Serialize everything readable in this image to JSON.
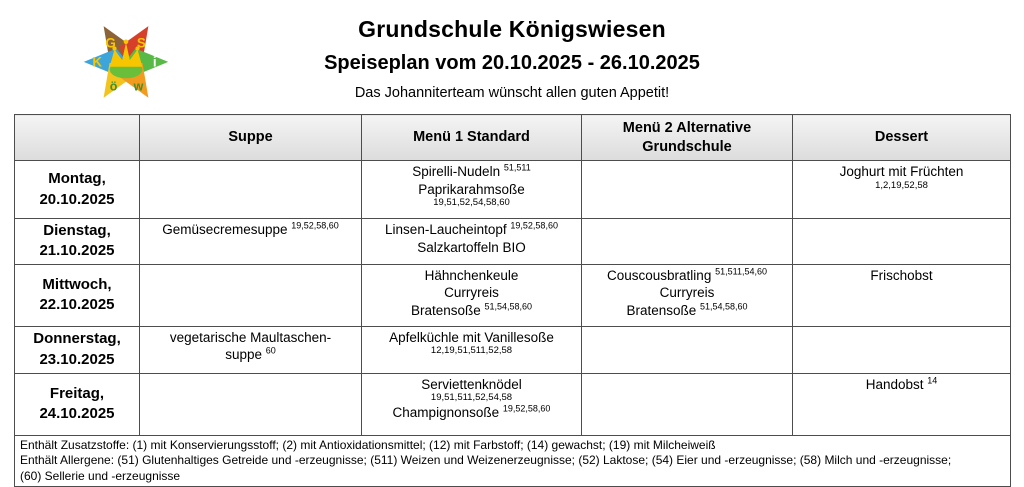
{
  "header": {
    "title": "Grundschule Königswiesen",
    "subtitle": "Speiseplan vom 20.10.2025 - 26.10.2025",
    "tagline": "Das Johanniterteam wünscht allen guten Appetit!"
  },
  "logo": {
    "name": "school-star-logo",
    "letters": [
      "G",
      "S",
      "K",
      "i",
      "ö",
      "w"
    ],
    "colors": {
      "g_petal": "#8c6239",
      "s_petal": "#d6402a",
      "k_petal": "#3da5d9",
      "i_petal": "#58b947",
      "oe_petal": "#f2c41d",
      "w_petal": "#f29c1f",
      "crown": "#f7c600",
      "grass": "#6abf3a",
      "letter_yellow": "#f7c600",
      "letter_white": "#ffffff",
      "letter_green": "#3f8f2e"
    }
  },
  "table": {
    "columns": [
      "",
      "Suppe",
      "Menü 1 Standard",
      "Menü 2 Alternative Grundschule",
      "Dessert"
    ],
    "rows": [
      {
        "day": "Montag,",
        "date": "20.10.2025",
        "suppe": [],
        "menu1": [
          {
            "text": "Spirelli-Nudeln",
            "sup": "51,511"
          },
          {
            "text": "Paprikarahmsoße"
          },
          {
            "small": "19,51,52,54,58,60"
          }
        ],
        "menu2": [],
        "dessert": [
          {
            "text": "Joghurt mit Früchten"
          },
          {
            "small": "1,2,19,52,58"
          }
        ]
      },
      {
        "day": "Dienstag,",
        "date": "21.10.2025",
        "suppe": [
          {
            "text": "Gemüsecremesuppe",
            "sup": "19,52,58,60"
          }
        ],
        "menu1": [
          {
            "text": "Linsen-Laucheintopf",
            "sup": "19,52,58,60"
          },
          {
            "text": "Salzkartoffeln BIO"
          }
        ],
        "menu2": [],
        "dessert": []
      },
      {
        "day": "Mittwoch,",
        "date": "22.10.2025",
        "suppe": [],
        "menu1": [
          {
            "text": "Hähnchenkeule"
          },
          {
            "text": "Curryreis"
          },
          {
            "text": "Bratensoße",
            "sup": "51,54,58,60"
          }
        ],
        "menu2": [
          {
            "text": "Couscousbratling",
            "sup": "51,511,54,60"
          },
          {
            "text": "Curryreis"
          },
          {
            "text": "Bratensoße",
            "sup": "51,54,58,60"
          }
        ],
        "dessert": [
          {
            "text": "Frischobst"
          }
        ]
      },
      {
        "day": "Donnerstag,",
        "date": "23.10.2025",
        "suppe": [
          {
            "text": "vegetarische Maultaschen-"
          },
          {
            "text": "suppe",
            "sup": "60"
          }
        ],
        "menu1": [
          {
            "text": "Apfelküchle mit Vanillesoße"
          },
          {
            "small": "12,19,51,511,52,58"
          }
        ],
        "menu2": [],
        "dessert": []
      },
      {
        "day": "Freitag,",
        "date": "24.10.2025",
        "suppe": [],
        "menu1": [
          {
            "text": "Serviettenknödel"
          },
          {
            "small": "19,51,511,52,54,58"
          },
          {
            "text": "Champignonsoße",
            "sup": "19,52,58,60"
          }
        ],
        "menu2": [],
        "dessert": [
          {
            "text": "Handobst",
            "sup": "14"
          }
        ]
      }
    ]
  },
  "footer": {
    "lines": [
      "Enthält Zusatzstoffe: (1) mit Konservierungsstoff; (2) mit Antioxidationsmittel; (12) mit Farbstoff; (14) gewachst; (19) mit Milcheiweiß",
      "Enthält Allergene: (51) Glutenhaltiges Getreide und -erzeugnisse; (511) Weizen und Weizenerzeugnisse; (52) Laktose; (54) Eier und -erzeugnisse; (58) Milch und -erzeugnisse;",
      "(60) Sellerie und -erzeugnisse"
    ]
  }
}
